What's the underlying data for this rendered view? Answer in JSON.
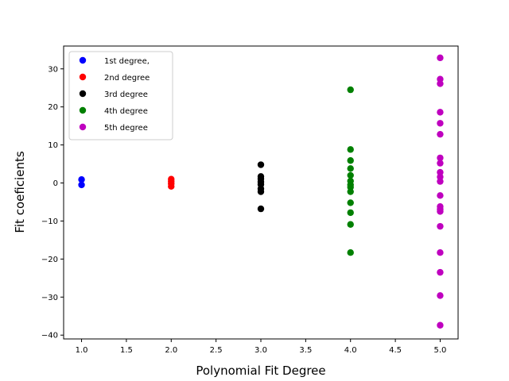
{
  "chart_data": {
    "type": "scatter",
    "title": "",
    "xlabel": "Polynomial Fit Degree",
    "ylabel": "Fit coeficients",
    "xlim": [
      0.8,
      5.2
    ],
    "ylim": [
      -41,
      36
    ],
    "xticks": [
      1.0,
      1.5,
      2.0,
      2.5,
      3.0,
      3.5,
      4.0,
      4.5,
      5.0
    ],
    "xtick_labels": [
      "1.0",
      "1.5",
      "2.0",
      "2.5",
      "3.0",
      "3.5",
      "4.0",
      "4.5",
      "5.0"
    ],
    "yticks": [
      -40,
      -30,
      -20,
      -10,
      0,
      10,
      20,
      30
    ],
    "ytick_labels": [
      "−40",
      "−30",
      "−20",
      "−10",
      "0",
      "10",
      "20",
      "30"
    ],
    "grid": false,
    "legend_position": "top-left",
    "series": [
      {
        "name": "1st degree,",
        "color": "#0000ff",
        "x": 1.0,
        "values": [
          0.9,
          -0.5
        ]
      },
      {
        "name": "2nd degree",
        "color": "#ff0000",
        "x": 2.0,
        "values": [
          1.0,
          0.4,
          -0.2,
          -0.9
        ]
      },
      {
        "name": "3rd degree",
        "color": "#000000",
        "x": 3.0,
        "values": [
          4.8,
          1.7,
          1.1,
          0.3,
          -0.4,
          -1.5,
          -2.3,
          -6.8
        ]
      },
      {
        "name": "4th degree",
        "color": "#008000",
        "x": 4.0,
        "values": [
          24.5,
          8.8,
          5.9,
          3.8,
          2.0,
          0.5,
          -0.5,
          -1.1,
          -2.3,
          -5.2,
          -7.8,
          -10.9,
          -18.3
        ]
      },
      {
        "name": "5th degree",
        "color": "#bf00bf",
        "x": 5.0,
        "values": [
          32.9,
          27.3,
          26.1,
          18.6,
          15.7,
          12.8,
          6.6,
          5.2,
          2.8,
          1.6,
          0.4,
          -3.3,
          -6.2,
          -6.9,
          -7.5,
          -11.4,
          -18.3,
          -23.5,
          -29.6,
          -37.4
        ]
      }
    ]
  }
}
